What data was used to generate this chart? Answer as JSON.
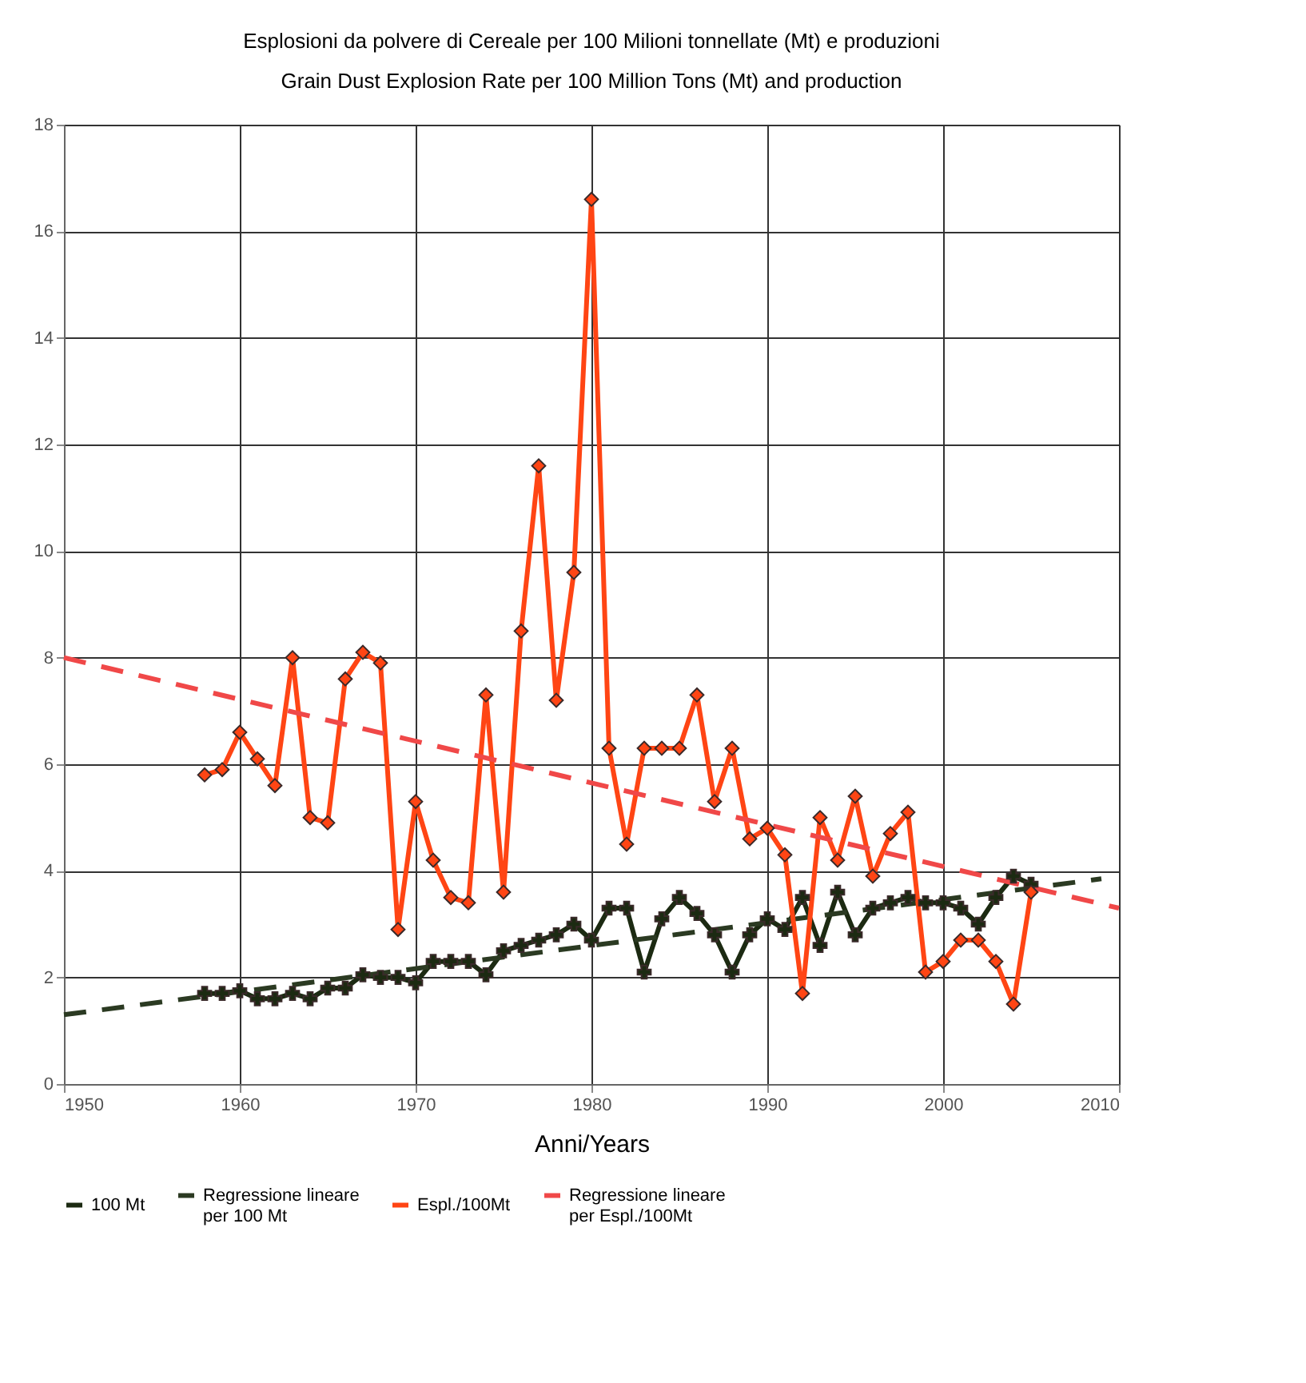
{
  "chart_data": {
    "type": "line",
    "title": "Esplosioni da polvere di Cereale per 100 Milioni tonnellate (Mt) e produzioni",
    "subtitle": "Grain Dust Explosion Rate per 100 Million Tons (Mt)  and production",
    "xlabel": "Anni/Years",
    "xlim": [
      1950,
      2010
    ],
    "xticks": [
      1950,
      1960,
      1970,
      1980,
      1990,
      2000,
      2010
    ],
    "ylim": [
      0,
      18
    ],
    "yticks": [
      0,
      2,
      4,
      6,
      8,
      10,
      12,
      14,
      16,
      18
    ],
    "grid": true,
    "legend": "bottom",
    "series": [
      {
        "name": "100 Mt",
        "color": "#1c2a12",
        "marker": "cross",
        "line_style": "solid",
        "x": [
          1958,
          1959,
          1960,
          1961,
          1962,
          1963,
          1964,
          1965,
          1966,
          1967,
          1968,
          1969,
          1970,
          1971,
          1972,
          1973,
          1974,
          1975,
          1976,
          1977,
          1978,
          1979,
          1980,
          1981,
          1982,
          1983,
          1984,
          1985,
          1986,
          1987,
          1988,
          1989,
          1990,
          1991,
          1992,
          1993,
          1994,
          1995,
          1996,
          1997,
          1998,
          1999,
          2000,
          2001,
          2002,
          2003,
          2004,
          2005
        ],
        "values": [
          1.7,
          1.7,
          1.75,
          1.6,
          1.6,
          1.7,
          1.6,
          1.8,
          1.8,
          2.05,
          2.0,
          2.0,
          1.9,
          2.3,
          2.3,
          2.3,
          2.05,
          2.5,
          2.6,
          2.7,
          2.8,
          3.0,
          2.7,
          3.3,
          3.3,
          2.1,
          3.1,
          3.5,
          3.2,
          2.8,
          2.1,
          2.8,
          3.1,
          2.9,
          3.5,
          2.6,
          3.6,
          2.8,
          3.3,
          3.4,
          3.5,
          3.4,
          3.4,
          3.3,
          3.0,
          3.5,
          3.9,
          3.75
        ]
      },
      {
        "name": "Regressione lineare\nper 100 Mt",
        "color": "#2b3a22",
        "marker": "none",
        "line_style": "dashed",
        "x": [
          1950,
          2009
        ],
        "values": [
          1.3,
          3.85
        ]
      },
      {
        "name": "Espl./100Mt",
        "color": "#ff4514",
        "marker": "diamond",
        "line_style": "solid",
        "x": [
          1958,
          1959,
          1960,
          1961,
          1962,
          1963,
          1964,
          1965,
          1966,
          1967,
          1968,
          1969,
          1970,
          1971,
          1972,
          1973,
          1974,
          1975,
          1976,
          1977,
          1978,
          1979,
          1980,
          1981,
          1982,
          1983,
          1984,
          1985,
          1986,
          1987,
          1988,
          1989,
          1990,
          1991,
          1992,
          1993,
          1994,
          1995,
          1996,
          1997,
          1998,
          1999,
          2000,
          2001,
          2002,
          2003,
          2004,
          2005
        ],
        "values": [
          5.8,
          5.9,
          6.6,
          6.1,
          5.6,
          8.0,
          5.0,
          4.9,
          7.6,
          8.1,
          7.9,
          2.9,
          5.3,
          4.2,
          3.5,
          3.4,
          7.3,
          3.6,
          8.5,
          11.6,
          7.2,
          9.6,
          16.6,
          6.3,
          4.5,
          6.3,
          6.3,
          6.3,
          7.3,
          5.3,
          6.3,
          4.6,
          4.8,
          4.3,
          1.7,
          5.0,
          4.2,
          5.4,
          3.9,
          4.7,
          5.1,
          2.1,
          2.3,
          2.7,
          2.7,
          2.3,
          1.5,
          3.6
        ]
      },
      {
        "name": "Regressione lineare\nper Espl./100Mt",
        "color": "#f04848",
        "marker": "none",
        "line_style": "dashed",
        "x": [
          1950,
          2010
        ],
        "values": [
          8.0,
          3.3
        ]
      }
    ]
  }
}
